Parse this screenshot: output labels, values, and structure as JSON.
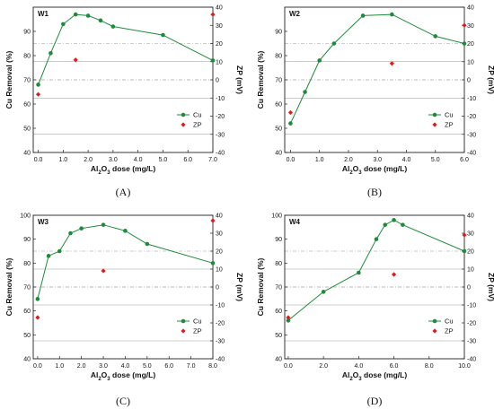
{
  "chart_data": [
    {
      "type": "line",
      "panel_label": "W1",
      "caption": "(A)",
      "xlabel": "Al2O3 dose (mg/L)",
      "ylabel": "Cu Removal (%)",
      "y2label": "ZP (mV)",
      "xlim": [
        -0.2,
        7.0
      ],
      "xticks": [
        "0.0",
        "1.0",
        "2.0",
        "3.0",
        "4.0",
        "5.0",
        "6.0",
        "7.0"
      ],
      "ylim": [
        40,
        100
      ],
      "yticks": [
        "40",
        "50",
        "60",
        "70",
        "80",
        "90"
      ],
      "y2lim": [
        -40,
        40
      ],
      "y2ticks": [
        "-40",
        "-30",
        "-20",
        "-10",
        "0",
        "10",
        "20",
        "30",
        "40"
      ],
      "legend_position": "bottom-right",
      "series": [
        {
          "name": "Cu",
          "axis": "left",
          "color": "#1e8a3c",
          "marker": "circle",
          "x": [
            0,
            0.5,
            1.0,
            1.5,
            2.0,
            2.5,
            3.0,
            5.0,
            7.0
          ],
          "y": [
            68,
            81,
            93,
            97,
            96.5,
            94.5,
            92,
            88.5,
            78
          ]
        },
        {
          "name": "ZP",
          "axis": "right",
          "color": "#e11b1b",
          "marker": "diamond",
          "x": [
            0,
            1.5,
            7.0
          ],
          "y": [
            -8,
            11,
            36
          ]
        }
      ]
    },
    {
      "type": "line",
      "panel_label": "W2",
      "caption": "(B)",
      "xlabel": "Al2O3 dose (mg/L)",
      "ylabel": "Cu Removal (%)",
      "y2label": "ZP (mV)",
      "xlim": [
        -0.2,
        6.0
      ],
      "xticks": [
        "0.0",
        "1.0",
        "2.0",
        "3.0",
        "4.0",
        "5.0",
        "6.0"
      ],
      "ylim": [
        40,
        100
      ],
      "yticks": [
        "40",
        "50",
        "60",
        "70",
        "80",
        "90"
      ],
      "y2lim": [
        -40,
        40
      ],
      "y2ticks": [
        "-40",
        "-30",
        "-20",
        "-10",
        "0",
        "10",
        "20",
        "30",
        "40"
      ],
      "legend_position": "bottom-right",
      "series": [
        {
          "name": "Cu",
          "axis": "left",
          "color": "#1e8a3c",
          "marker": "circle",
          "x": [
            0,
            0.5,
            1.0,
            1.5,
            2.5,
            3.5,
            5.0,
            6.0
          ],
          "y": [
            52,
            65,
            78,
            85,
            96.5,
            97,
            88,
            85
          ]
        },
        {
          "name": "ZP",
          "axis": "right",
          "color": "#e11b1b",
          "marker": "diamond",
          "x": [
            0,
            3.5,
            6.0
          ],
          "y": [
            -18,
            9,
            30
          ]
        }
      ]
    },
    {
      "type": "line",
      "panel_label": "W3",
      "caption": "(C)",
      "xlabel": "Al2O3 dose (mg/L)",
      "ylabel": "Cu Removal (%)",
      "y2label": "ZP (mV)",
      "xlim": [
        -0.2,
        8.0
      ],
      "xticks": [
        "0.0",
        "1.0",
        "2.0",
        "3.0",
        "4.0",
        "5.0",
        "6.0",
        "7.0",
        "8.0"
      ],
      "ylim": [
        40,
        100
      ],
      "yticks": [
        "40",
        "50",
        "60",
        "70",
        "80",
        "90",
        "100"
      ],
      "y2lim": [
        -40,
        40
      ],
      "y2ticks": [
        "-40",
        "-30",
        "-20",
        "-10",
        "0",
        "10",
        "20",
        "30",
        "40"
      ],
      "legend_position": "bottom-right",
      "series": [
        {
          "name": "Cu",
          "axis": "left",
          "color": "#1e8a3c",
          "marker": "circle",
          "x": [
            0,
            0.5,
            1.0,
            1.5,
            2.0,
            3.0,
            4.0,
            5.0,
            8.0
          ],
          "y": [
            65,
            83,
            85,
            92.5,
            94.5,
            96,
            93.5,
            88,
            80
          ]
        },
        {
          "name": "ZP",
          "axis": "right",
          "color": "#e11b1b",
          "marker": "diamond",
          "x": [
            0,
            3.0,
            8.0
          ],
          "y": [
            -17,
            9,
            37
          ]
        }
      ]
    },
    {
      "type": "line",
      "panel_label": "W4",
      "caption": "(D)",
      "xlabel": "Al2O3 dose (mg/L)",
      "ylabel": "Cu Removal (%)",
      "y2label": "ZP (mV)",
      "xlim": [
        -0.2,
        10.0
      ],
      "xticks": [
        "0.0",
        "2.0",
        "4.0",
        "6.0",
        "8.0",
        "10.0"
      ],
      "ylim": [
        40,
        100
      ],
      "yticks": [
        "40",
        "50",
        "60",
        "70",
        "80",
        "90",
        "100"
      ],
      "y2lim": [
        -40,
        40
      ],
      "y2ticks": [
        "-40",
        "-30",
        "-20",
        "-10",
        "0",
        "10",
        "20",
        "30",
        "40"
      ],
      "legend_position": "bottom-right",
      "series": [
        {
          "name": "Cu",
          "axis": "left",
          "color": "#1e8a3c",
          "marker": "circle",
          "x": [
            0,
            2.0,
            4.0,
            5.0,
            5.5,
            6.0,
            6.5,
            10.0
          ],
          "y": [
            56,
            68,
            76,
            90,
            96,
            98,
            96,
            85
          ]
        },
        {
          "name": "ZP",
          "axis": "right",
          "color": "#e11b1b",
          "marker": "diamond",
          "x": [
            0,
            6.0,
            10.0
          ],
          "y": [
            -17,
            7,
            29
          ]
        }
      ]
    }
  ]
}
